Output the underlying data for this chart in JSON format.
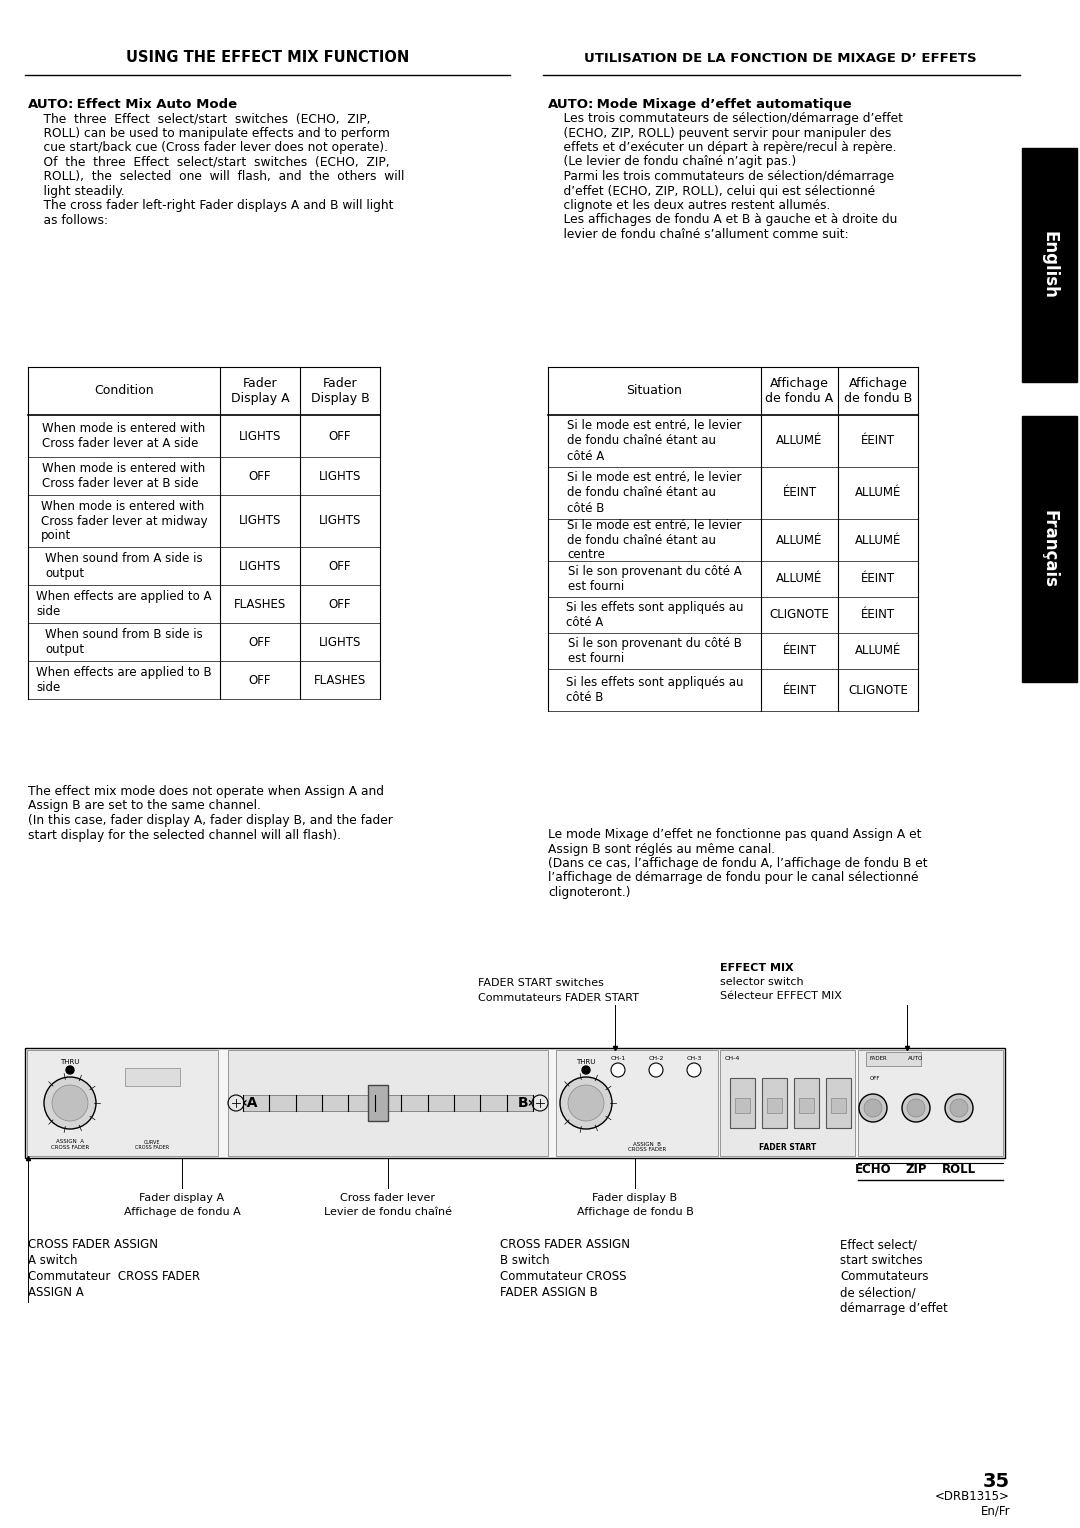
{
  "page_bg": "#ffffff",
  "header_left": "USING THE EFFECT MIX FUNCTION",
  "header_right": "UTILISATION DE LA FONCTION DE MIXAGE D’ EFFETS",
  "auto_en_label": "AUTO:",
  "auto_en_title": " Effect Mix Auto Mode",
  "auto_en_body1": "    The  three  Effect  select/start  switches  (ECHO,  ZIP,",
  "auto_en_body2": "    ROLL) can be used to manipulate effects and to perform",
  "auto_en_body3": "    cue start/back cue (Cross fader lever does not operate).",
  "auto_en_body4": "    Of  the  three  Effect  select/start  switches  (ECHO,  ZIP,",
  "auto_en_body5": "    ROLL),  the  selected  one  will  flash,  and  the  others  will",
  "auto_en_body6": "    light steadily.",
  "auto_en_body7": "    The cross fader left-right Fader displays A and B will light",
  "auto_en_body8": "    as follows:",
  "auto_fr_label": "AUTO:",
  "auto_fr_title": " Mode Mixage d’effet automatique",
  "auto_fr_body1": "    Les trois commutateurs de sélection/démarrage d’effet",
  "auto_fr_body2": "    (ECHO, ZIP, ROLL) peuvent servir pour manipuler des",
  "auto_fr_body3": "    effets et d’exécuter un départ à repère/recul à repère.",
  "auto_fr_body4": "    (Le levier de fondu chaîné n’agit pas.)",
  "auto_fr_body5": "    Parmi les trois commutateurs de sélection/démarrage",
  "auto_fr_body6": "    d’effet (ECHO, ZIP, ROLL), celui qui est sélectionné",
  "auto_fr_body7": "    clignote et les deux autres restent allumés.",
  "auto_fr_body8": "    Les affichages de fondu A et B à gauche et à droite du",
  "auto_fr_body9": "    levier de fondu chaîné s’allument comme suit:",
  "table_en_headers": [
    "Condition",
    "Fader\nDisplay A",
    "Fader\nDisplay B"
  ],
  "table_en_rows": [
    [
      "When mode is entered with\nCross fader lever at A side",
      "LIGHTS",
      "OFF"
    ],
    [
      "When mode is entered with\nCross fader lever at B side",
      "OFF",
      "LIGHTS"
    ],
    [
      "When mode is entered with\nCross fader lever at midway\npoint",
      "LIGHTS",
      "LIGHTS"
    ],
    [
      "When sound from A side is\noutput",
      "LIGHTS",
      "OFF"
    ],
    [
      "When effects are applied to A\nside",
      "FLASHES",
      "OFF"
    ],
    [
      "When sound from B side is\noutput",
      "OFF",
      "LIGHTS"
    ],
    [
      "When effects are applied to B\nside",
      "OFF",
      "FLASHES"
    ]
  ],
  "table_fr_headers": [
    "Situation",
    "Affichage\nde fondu A",
    "Affichage\nde fondu B"
  ],
  "table_fr_rows": [
    [
      "Si le mode est entré, le levier\nde fondu chaîné étant au\ncôté A",
      "ALLUMÉ",
      "ÉEINT"
    ],
    [
      "Si le mode est entré, le levier\nde fondu chaîné étant au\ncôté B",
      "ÉEINT",
      "ALLUMÉ"
    ],
    [
      "Si le mode est entré, le levier\nde fondu chaîné étant au\ncentre",
      "ALLUMÉ",
      "ALLUMÉ"
    ],
    [
      "Si le son provenant du côté A\nest fourni",
      "ALLUMÉ",
      "ÉEINT"
    ],
    [
      "Si les effets sont appliqués au\ncôté A",
      "CLIGNOTE",
      "ÉEINT"
    ],
    [
      "Si le son provenant du côté B\nest fourni",
      "ÉEINT",
      "ALLUMÉ"
    ],
    [
      "Si les effets sont appliqués au\ncôté B",
      "ÉEINT",
      "CLIGNOTE"
    ]
  ],
  "footer_en_lines": [
    "The effect mix mode does not operate when Assign A and",
    "Assign B are set to the same channel.",
    "(In this case, fader display A, fader display B, and the fader",
    "start display for the selected channel will all flash)."
  ],
  "footer_fr_lines": [
    "Le mode Mixage d’effet ne fonctionne pas quand Assign A et",
    "Assign B sont réglés au même canal.",
    "(Dans ce cas, l’affichage de fondu A, l’affichage de fondu B et",
    "l’affichage de démarrage de fondu pour le canal sélectionné",
    "clignoteront.)"
  ],
  "page_number": "35",
  "page_code": "<DRB1315>",
  "page_lang": "En/Fr",
  "diag_ann": {
    "fader_start_en": "FADER START switches",
    "fader_start_fr": "Commutateurs FADER START",
    "effect_mix_line1": "EFFECT MIX",
    "effect_mix_line2": "selector switch",
    "effect_mix_line3": "Sélecteur EFFECT MIX",
    "fader_a_en": "Fader display A",
    "fader_a_fr": "Affichage de fondu A",
    "fader_b_en": "Fader display B",
    "fader_b_fr": "Affichage de fondu B",
    "lever_en": "Cross fader lever",
    "lever_fr": "Levier de fondu chaîné",
    "cfa_line1": "CROSS FADER ASSIGN",
    "cfa_line2": "A switch",
    "cfa_line3": "Commutateur  CROSS FADER",
    "cfa_line4": "ASSIGN A",
    "cfb_line1": "CROSS FADER ASSIGN",
    "cfb_line2": "B switch",
    "cfb_line3": "Commutateur CROSS",
    "cfb_line4": "FADER ASSIGN B",
    "eff_line1": "Effect select/",
    "eff_line2": "start switches",
    "eff_line3": "Commutateurs",
    "eff_line4": "de sélection/",
    "eff_line5": "démarrage d’effet"
  }
}
